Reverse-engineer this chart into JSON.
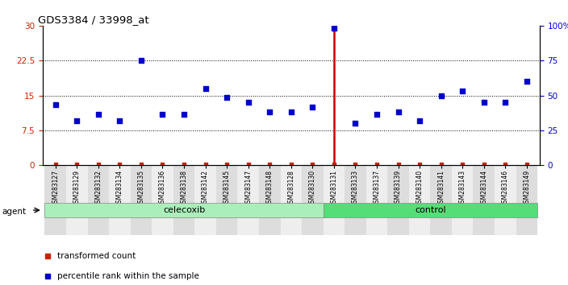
{
  "title": "GDS3384 / 33998_at",
  "samples": [
    "GSM283127",
    "GSM283129",
    "GSM283132",
    "GSM283134",
    "GSM283135",
    "GSM283136",
    "GSM283138",
    "GSM283142",
    "GSM283145",
    "GSM283147",
    "GSM283148",
    "GSM283128",
    "GSM283130",
    "GSM283131",
    "GSM283133",
    "GSM283137",
    "GSM283139",
    "GSM283140",
    "GSM283141",
    "GSM283143",
    "GSM283144",
    "GSM283146",
    "GSM283149"
  ],
  "transformed_count": [
    0.15,
    0.15,
    0.15,
    0.15,
    0.15,
    0.15,
    0.15,
    0.15,
    0.15,
    0.15,
    0.15,
    0.15,
    0.15,
    0.15,
    0.15,
    0.15,
    0.15,
    0.15,
    0.15,
    0.15,
    0.15,
    0.15,
    0.15
  ],
  "percentile_rank_left": [
    13.0,
    9.5,
    11.0,
    9.5,
    22.5,
    11.0,
    11.0,
    16.5,
    14.5,
    13.5,
    11.5,
    11.5,
    12.5,
    29.5,
    9.0,
    11.0,
    11.5,
    9.5,
    15.0,
    16.0,
    13.5,
    13.5,
    18.0
  ],
  "highlight_sample_idx": 13,
  "celecoxib_count": 13,
  "control_count": 10,
  "ylim_left": [
    0,
    30
  ],
  "yticks_left": [
    0,
    7.5,
    15,
    22.5,
    30
  ],
  "yticks_right": [
    0,
    25,
    50,
    75,
    100
  ],
  "ytick_labels_right": [
    "0",
    "25",
    "50",
    "75",
    "100%"
  ],
  "dotted_lines": [
    7.5,
    15,
    22.5
  ],
  "highlight_line_color": "#CC0000",
  "transformed_color": "#CC2200",
  "percentile_color": "#0000CC",
  "left_tick_color": "#CC2200",
  "right_tick_color": "#0000CC",
  "agent_label": "agent",
  "celecoxib_label": "celecoxib",
  "control_label": "control",
  "legend_transformed": "transformed count",
  "legend_percentile": "percentile rank within the sample",
  "celecoxib_color": "#AAEEBB",
  "control_color": "#55DD77"
}
